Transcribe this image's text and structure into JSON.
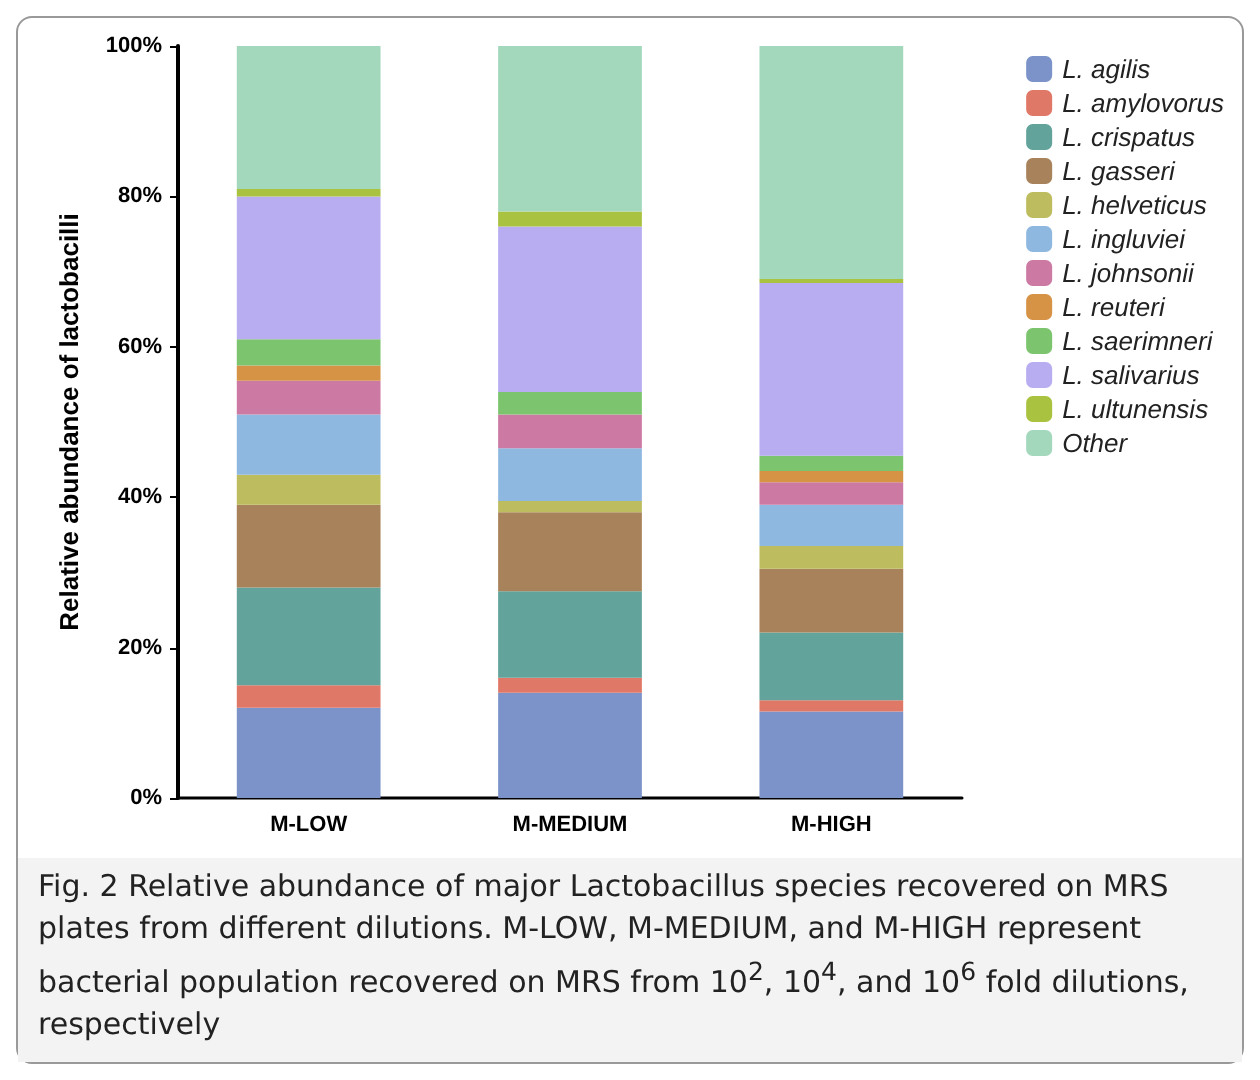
{
  "chart_data": {
    "type": "bar",
    "stacked": true,
    "ylabel": "Relative abundance of lactobacilli",
    "categories": [
      "M-LOW",
      "M-MEDIUM",
      "M-HIGH"
    ],
    "series": [
      {
        "name": "L. agilis",
        "color": "#7b93c9",
        "values": [
          12,
          14,
          11.5
        ]
      },
      {
        "name": "L. amylovorus",
        "color": "#e07868",
        "values": [
          3,
          2,
          1.5
        ]
      },
      {
        "name": "L. crispatus",
        "color": "#62a39b",
        "values": [
          13,
          11.5,
          9
        ]
      },
      {
        "name": "L. gasseri",
        "color": "#a8825a",
        "values": [
          11,
          10.5,
          8.5
        ]
      },
      {
        "name": "L. helveticus",
        "color": "#bdbc5e",
        "values": [
          4,
          1.5,
          3
        ]
      },
      {
        "name": "L. ingluviei",
        "color": "#8fb8e0",
        "values": [
          8,
          7,
          5.5
        ]
      },
      {
        "name": "L. johnsonii",
        "color": "#cc7aa3",
        "values": [
          4.5,
          4.5,
          3
        ]
      },
      {
        "name": "L. reuteri",
        "color": "#d69245",
        "values": [
          2,
          0,
          1.5
        ]
      },
      {
        "name": "L. saerimneri",
        "color": "#7cc46e",
        "values": [
          3.5,
          3,
          2
        ]
      },
      {
        "name": "L. salivarius",
        "color": "#b7adf0",
        "values": [
          19,
          22,
          23
        ]
      },
      {
        "name": "L. ultunensis",
        "color": "#a9c23f",
        "values": [
          1,
          2,
          0.5
        ]
      },
      {
        "name": "Other",
        "color": "#a3d8bd",
        "values": [
          19,
          22,
          31
        ]
      }
    ],
    "ylim": [
      0,
      100
    ],
    "yticks": [
      {
        "value": 0,
        "label": "0%"
      },
      {
        "value": 20,
        "label": "20%"
      },
      {
        "value": 40,
        "label": "40%"
      },
      {
        "value": 60,
        "label": "60%"
      },
      {
        "value": 80,
        "label": "80%"
      },
      {
        "value": 100,
        "label": "100%"
      }
    ],
    "grid": false,
    "legend": "right",
    "annotations": [
      "Fig. 2 Relative abundance of major Lactobacillus species recovered on MRS plates from different dilutions. M-LOW, M-MEDIUM, and M-HIGH represent bacterial population recovered on MRS from 10$^{2}$, 10$^{4}$, and 10$^{6}$ fold dilutions, respectively"
    ]
  }
}
